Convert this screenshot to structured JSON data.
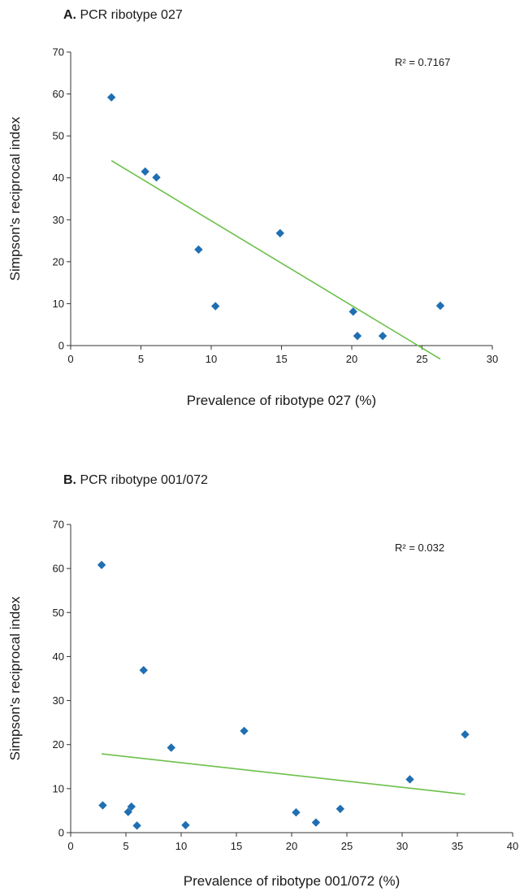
{
  "chart_data": [
    {
      "type": "scatter",
      "panel_letter": "A.",
      "title": "PCR ribotype 027",
      "xlabel": "Prevalence of ribotype 027 (%)",
      "ylabel": "Simpson's reciprocal index",
      "xlim": [
        0,
        30
      ],
      "ylim": [
        0,
        70
      ],
      "xticks": [
        0,
        5,
        10,
        15,
        20,
        25,
        30
      ],
      "yticks": [
        0,
        10,
        20,
        30,
        40,
        50,
        60,
        70
      ],
      "grid": false,
      "marker_color": "#1f6fb2",
      "trendline_color": "#6cc04a",
      "r_squared_label": "R² = 0.7167",
      "x": [
        2.9,
        5.3,
        6.1,
        9.1,
        10.3,
        14.9,
        20.1,
        20.4,
        22.2,
        26.3
      ],
      "y": [
        59.2,
        41.5,
        40.1,
        22.9,
        9.4,
        26.8,
        8.1,
        2.3,
        2.3,
        9.5
      ],
      "trendline": {
        "x": [
          2.9,
          26.3
        ],
        "y": [
          44.1,
          -3.2
        ]
      }
    },
    {
      "type": "scatter",
      "panel_letter": "B.",
      "title": "PCR ribotype 001/072",
      "xlabel": "Prevalence of ribotype 001/072 (%)",
      "ylabel": "Simpson's reciprocal index",
      "xlim": [
        0,
        40
      ],
      "ylim": [
        0,
        70
      ],
      "xticks": [
        0,
        5,
        10,
        15,
        20,
        25,
        30,
        35,
        40
      ],
      "yticks": [
        0,
        10,
        20,
        30,
        40,
        50,
        60,
        70
      ],
      "grid": false,
      "marker_color": "#1f6fb2",
      "trendline_color": "#6cc04a",
      "r_squared_label": "R² = 0.032",
      "x": [
        2.8,
        2.9,
        5.2,
        5.5,
        6.0,
        6.6,
        9.1,
        10.4,
        15.7,
        20.4,
        22.2,
        24.4,
        30.7,
        35.7
      ],
      "y": [
        60.8,
        6.2,
        4.7,
        5.9,
        1.6,
        36.9,
        19.3,
        1.7,
        23.1,
        4.6,
        2.3,
        5.4,
        12.1,
        22.3
      ],
      "trendline": {
        "x": [
          2.8,
          35.7
        ],
        "y": [
          17.9,
          8.7
        ]
      }
    }
  ]
}
